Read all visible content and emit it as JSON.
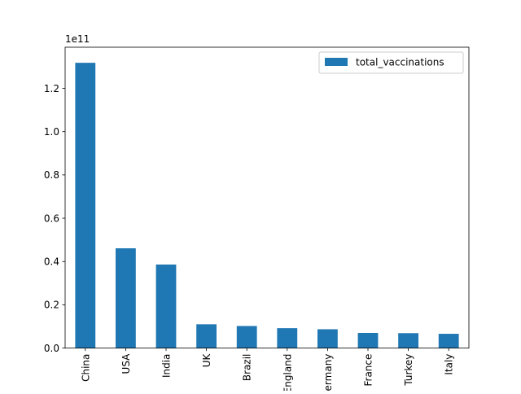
{
  "chart_data": {
    "type": "bar",
    "categories": [
      "China",
      "USA",
      "India",
      "UK",
      "Brazil",
      "England",
      "Germany",
      "France",
      "Turkey",
      "Italy"
    ],
    "series": [
      {
        "name": "total_vaccinations",
        "values": [
          131800000000,
          46100000000,
          38600000000,
          11000000000,
          10200000000,
          9200000000,
          8700000000,
          7000000000,
          6900000000,
          6600000000
        ]
      }
    ],
    "ylim": [
      0,
      139000000000
    ],
    "yticks": [
      0,
      20000000000,
      40000000000,
      60000000000,
      80000000000,
      100000000000,
      120000000000
    ],
    "ytick_labels": [
      "0.0",
      "0.2",
      "0.4",
      "0.6",
      "0.8",
      "1.0",
      "1.2"
    ],
    "offset_label": "1e11",
    "bar_color": "#1f77b4",
    "legend_position": "upper right",
    "grid": false
  }
}
